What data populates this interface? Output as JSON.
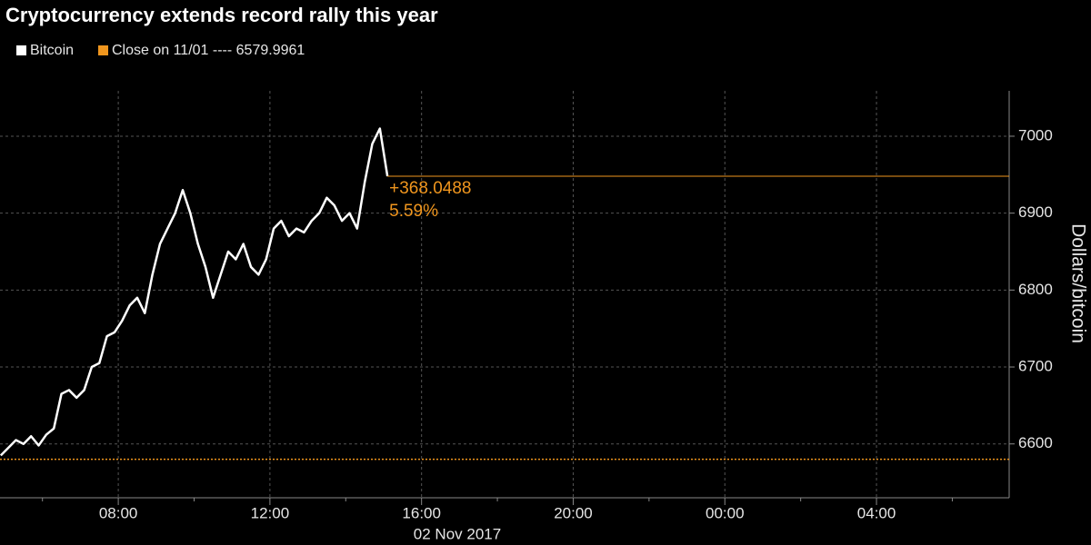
{
  "chart_data": {
    "type": "line",
    "title": "Cryptocurrency extends record rally this year",
    "ylabel": "Dollars/bitcoin",
    "x_sublabel": "02 Nov 2017",
    "x": [
      4.9,
      5.1,
      5.3,
      5.5,
      5.7,
      5.9,
      6.1,
      6.3,
      6.5,
      6.7,
      6.9,
      7.1,
      7.3,
      7.5,
      7.7,
      7.9,
      8.1,
      8.3,
      8.5,
      8.7,
      8.9,
      9.1,
      9.3,
      9.5,
      9.7,
      9.9,
      10.1,
      10.3,
      10.5,
      10.7,
      10.9,
      11.1,
      11.3,
      11.5,
      11.7,
      11.9,
      12.1,
      12.3,
      12.5,
      12.7,
      12.9,
      13.1,
      13.3,
      13.5,
      13.7,
      13.9,
      14.1,
      14.3,
      14.5,
      14.7,
      14.9,
      15.1
    ],
    "series": [
      {
        "name": "Bitcoin",
        "color": "#ffffff",
        "values": [
          6585,
          6595,
          6605,
          6600,
          6610,
          6598,
          6612,
          6620,
          6665,
          6670,
          6660,
          6670,
          6700,
          6705,
          6740,
          6745,
          6760,
          6780,
          6790,
          6770,
          6820,
          6860,
          6880,
          6900,
          6930,
          6900,
          6860,
          6830,
          6790,
          6820,
          6850,
          6840,
          6860,
          6830,
          6820,
          6840,
          6880,
          6890,
          6870,
          6880,
          6875,
          6890,
          6900,
          6920,
          6910,
          6890,
          6900,
          6880,
          6940,
          6990,
          7010,
          6948
        ]
      }
    ],
    "reference_line": {
      "name": "Close on 11/01 ----",
      "value": 6579.9961,
      "color": "#f0961e"
    },
    "annotations": [
      "+368.0488",
      "5.59%"
    ],
    "annotation_color": "#f0961e",
    "xlim": [
      4.88,
      31.5
    ],
    "xticks": [
      {
        "value": 8,
        "label": "08:00"
      },
      {
        "value": 12,
        "label": "12:00"
      },
      {
        "value": 16,
        "label": "16:00"
      },
      {
        "value": 20,
        "label": "20:00"
      },
      {
        "value": 24,
        "label": "00:00"
      },
      {
        "value": 28,
        "label": "04:00"
      }
    ],
    "xminorticks": [
      6,
      10,
      14,
      18,
      22,
      26,
      30
    ],
    "ylim": [
      6530,
      7059
    ],
    "yticks": [
      6600,
      6700,
      6800,
      6900,
      7000
    ],
    "grid": true
  }
}
